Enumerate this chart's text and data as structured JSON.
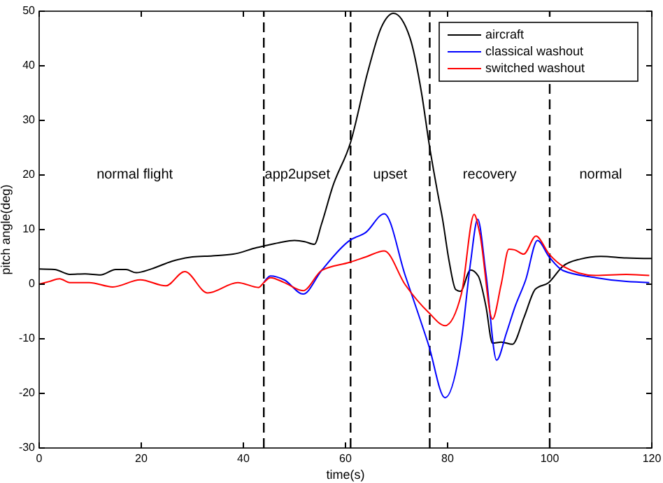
{
  "chart_data": {
    "type": "line",
    "xlabel": "time(s)",
    "ylabel": "pitch angle(deg)",
    "xlim": [
      0,
      120
    ],
    "ylim": [
      -30,
      50
    ],
    "xticks": [
      0,
      20,
      40,
      60,
      80,
      100,
      120
    ],
    "yticks": [
      -30,
      -20,
      -10,
      0,
      10,
      20,
      30,
      40,
      50
    ],
    "grid": false,
    "legend": "top right",
    "line_style": "solid",
    "marker": "none",
    "series": [
      {
        "name": "aircraft",
        "color": "#000000",
        "x": [
          0,
          3,
          6,
          9,
          12,
          15,
          17,
          19,
          22,
          26,
          30,
          34,
          38,
          42.6,
          44,
          47,
          50,
          52,
          53.9,
          55.3,
          57.5,
          61,
          64.4,
          67,
          69.4,
          72.6,
          74.9,
          76.4,
          78,
          79,
          80.3,
          81.6,
          82.5,
          84.5,
          86,
          87.5,
          88.8,
          90.5,
          92.7,
          95,
          97.2,
          99.8,
          102.6,
          106,
          110,
          115,
          120
        ],
        "values": [
          2.8,
          2.7,
          1.8,
          1.9,
          1.7,
          2.7,
          2.7,
          2.1,
          2.8,
          4.2,
          5,
          5.2,
          5.5,
          6.7,
          7,
          7.6,
          8,
          7.8,
          7.3,
          11,
          17.9,
          26,
          39,
          47,
          49.6,
          45.2,
          35,
          25.6,
          17,
          12,
          4.2,
          -1,
          -1.3,
          2.6,
          1.5,
          -4,
          -10.8,
          -10.6,
          -11,
          -6,
          -0.9,
          0.3,
          3.3,
          4.6,
          5.1,
          4.8,
          4.7
        ]
      },
      {
        "name": "classical washout",
        "color": "#0000ff",
        "x": [
          44,
          45.3,
          48,
          51.7,
          55.3,
          60.8,
          64,
          67.6,
          71.7,
          76.3,
          79.5,
          82.7,
          84.5,
          85.9,
          87.5,
          89.6,
          91.5,
          93.1,
          95.3,
          97.6,
          99.9,
          102.6,
          109,
          115,
          119.5
        ],
        "values": [
          0.3,
          1.5,
          0.8,
          -1.8,
          2.5,
          8,
          9.5,
          12.9,
          1.6,
          -11.2,
          -20.8,
          -10.3,
          4,
          11.9,
          2,
          -13.9,
          -9,
          -4.4,
          0.8,
          8,
          5,
          2.5,
          1.2,
          0.5,
          0.3
        ]
      },
      {
        "name": "switched washout",
        "color": "#ff0000",
        "x": [
          0,
          2,
          4,
          6,
          9.8,
          14.4,
          19.8,
          24.8,
          28.5,
          33,
          38.9,
          43,
          44,
          45.3,
          48,
          51.7,
          55.3,
          60.8,
          64,
          67.6,
          71.7,
          76.3,
          79.5,
          82.7,
          85.2,
          86.3,
          88.8,
          90.5,
          92,
          93.1,
          94.9,
          97.3,
          99.9,
          102.6,
          109,
          115,
          119.5
        ],
        "values": [
          0,
          0.5,
          1,
          0.3,
          0.3,
          -0.5,
          0.8,
          -0.3,
          2.3,
          -1.6,
          0.3,
          -0.6,
          0.3,
          1.2,
          0.3,
          -1.2,
          2.5,
          4,
          5,
          6.1,
          -0.1,
          -5.2,
          -7.6,
          -1.8,
          12.8,
          9.3,
          -6.4,
          0,
          6.4,
          6.3,
          5.5,
          8.8,
          5.5,
          3.3,
          1.6,
          1.8,
          1.6
        ]
      }
    ],
    "ref_lines": [
      {
        "axis": "x",
        "value": 44,
        "line_style": "dashed",
        "color": "#000000"
      },
      {
        "axis": "x",
        "value": 61,
        "line_style": "dashed",
        "color": "#000000"
      },
      {
        "axis": "x",
        "value": 76.5,
        "line_style": "dashed",
        "color": "#000000"
      },
      {
        "axis": "x",
        "value": 100,
        "line_style": "dashed",
        "color": "#000000"
      }
    ],
    "annotations": [
      "normal flight",
      "app2upset",
      "upset",
      "recovery",
      "normal"
    ]
  }
}
